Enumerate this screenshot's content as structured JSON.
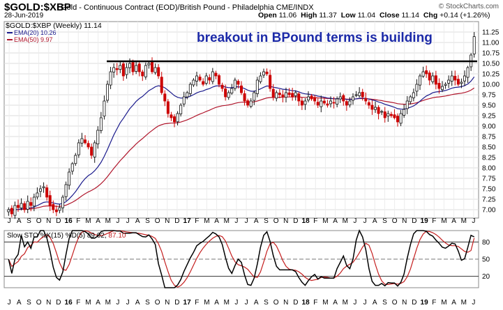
{
  "header": {
    "symbol": "$GOLD:$XBP",
    "description": "Gold - Continuous Contract (EOD)/British Pound - Philadelphia CME/INDX",
    "date": "28-Jun-2019",
    "open_label": "Open",
    "open": "11.06",
    "high_label": "High",
    "high": "11.37",
    "low_label": "Low",
    "low": "11.04",
    "close_label": "Close",
    "close": "11.14",
    "chg_label": "Chg",
    "chg": "+0.14 (+1.26%)",
    "brand": "© StockCharts.com"
  },
  "colors": {
    "up": "#111111",
    "down": "#cc0000",
    "ema20": "#1a1a8c",
    "ema50": "#b0152b",
    "k": "#000000",
    "d": "#c41e1e"
  },
  "chart_data": [
    {
      "type": "candlestick",
      "title": "breakout in BPound terms is building",
      "legend": [
        {
          "label": "$GOLD:$XBP (Weekly) 11.14",
          "color": "#000000"
        },
        {
          "label": "EMA(20) 10.26",
          "color": "#1a1a8c"
        },
        {
          "label": "EMA(50) 9.97",
          "color": "#b0152b"
        }
      ],
      "legend_position": "top-left",
      "ylim": [
        6.8,
        11.5
      ],
      "yticks": [
        "7.00",
        "7.25",
        "7.50",
        "7.75",
        "8.00",
        "8.25",
        "8.50",
        "8.75",
        "9.00",
        "9.25",
        "9.50",
        "9.75",
        "10.00",
        "10.25",
        "10.50",
        "10.75",
        "11.00",
        "11.25"
      ],
      "y_axis_side": "right",
      "grid": true,
      "xticks": [
        "J",
        "A",
        "S",
        "O",
        "N",
        "D",
        "16",
        "F",
        "M",
        "A",
        "M",
        "J",
        "J",
        "A",
        "S",
        "O",
        "N",
        "D",
        "17",
        "F",
        "M",
        "A",
        "M",
        "J",
        "J",
        "A",
        "S",
        "O",
        "N",
        "D",
        "18",
        "F",
        "M",
        "A",
        "M",
        "J",
        "J",
        "A",
        "S",
        "O",
        "N",
        "D",
        "19",
        "F",
        "M",
        "A",
        "M",
        "J"
      ],
      "resistance_level": 10.55,
      "closes": [
        7.0,
        6.9,
        7.1,
        7.05,
        7.15,
        7.0,
        7.2,
        7.1,
        7.3,
        7.4,
        7.5,
        7.55,
        7.3,
        7.1,
        7.0,
        6.95,
        7.05,
        7.3,
        7.6,
        7.9,
        8.1,
        8.3,
        8.6,
        8.7,
        8.6,
        8.5,
        8.3,
        8.6,
        8.9,
        9.2,
        9.6,
        10.0,
        10.3,
        10.4,
        10.35,
        10.45,
        10.2,
        10.4,
        10.5,
        10.3,
        10.45,
        10.3,
        10.2,
        10.45,
        10.5,
        10.3,
        10.4,
        10.2,
        9.8,
        9.6,
        9.3,
        9.2,
        9.1,
        9.3,
        9.5,
        9.7,
        9.8,
        10.0,
        10.1,
        10.2,
        10.1,
        10.0,
        10.2,
        10.1,
        10.3,
        10.2,
        10.0,
        9.9,
        9.7,
        9.8,
        9.9,
        10.1,
        10.0,
        9.8,
        9.6,
        9.5,
        9.6,
        9.8,
        10.1,
        10.2,
        10.3,
        10.25,
        9.9,
        9.7,
        9.8,
        9.75,
        9.7,
        9.8,
        9.75,
        9.7,
        9.8,
        9.6,
        9.5,
        9.6,
        9.7,
        9.65,
        9.6,
        9.5,
        9.6,
        9.55,
        9.5,
        9.6,
        9.55,
        9.65,
        9.7,
        9.6,
        9.5,
        9.6,
        9.7,
        9.75,
        9.8,
        9.7,
        9.6,
        9.5,
        9.4,
        9.45,
        9.3,
        9.35,
        9.2,
        9.3,
        9.25,
        9.2,
        9.1,
        9.3,
        9.4,
        9.6,
        9.7,
        9.8,
        10.0,
        10.2,
        10.3,
        10.25,
        10.1,
        10.2,
        10.0,
        9.9,
        9.95,
        10.0,
        10.1,
        10.2,
        10.1,
        10.0,
        10.05,
        10.2,
        10.4,
        10.7,
        11.14
      ],
      "ema20_last": 10.26,
      "ema50_last": 9.97
    },
    {
      "type": "line",
      "title": "",
      "legend": "Slow STO %K(15) %D(5) 89.02, 87.10",
      "legend_parts": [
        {
          "text": "Slow STO %K(15) %D(5) 89.02,",
          "color": "#000000"
        },
        {
          "text": " 87.10",
          "color": "#c41e1e"
        }
      ],
      "ylim": [
        0,
        100
      ],
      "yticks": [
        "20",
        "50",
        "80"
      ],
      "reference_lines": [
        20,
        50,
        80
      ],
      "k_last": 89.02,
      "d_last": 87.1
    }
  ]
}
